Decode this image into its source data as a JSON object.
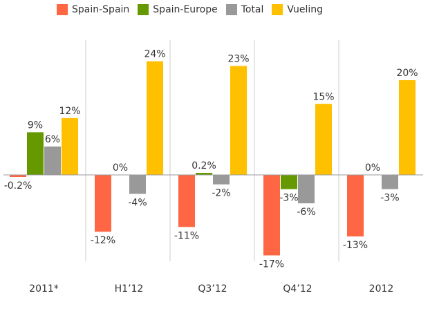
{
  "chart_data": {
    "type": "bar",
    "categories": [
      "2011*",
      "H1’12",
      "Q3’12",
      "Q4’12",
      "2012"
    ],
    "series": [
      {
        "name": "Spain-Spain",
        "color": "#ff6644",
        "values": [
          -0.2,
          -12,
          -11,
          -17,
          -13
        ],
        "labels": [
          "-0.2%",
          "-12%",
          "-11%",
          "-17%",
          "-13%"
        ]
      },
      {
        "name": "Spain-Europe",
        "color": "#669900",
        "values": [
          9,
          0,
          0.2,
          -3,
          0
        ],
        "labels": [
          "9%",
          "0%",
          "0.2%",
          "-3%",
          "0%"
        ]
      },
      {
        "name": "Total",
        "color": "#999999",
        "values": [
          6,
          -4,
          -2,
          -6,
          -3
        ],
        "labels": [
          "6%",
          "-4%",
          "-2%",
          "-6%",
          "-3%"
        ]
      },
      {
        "name": "Vueling",
        "color": "#ffc000",
        "values": [
          12,
          24,
          23,
          15,
          20
        ],
        "labels": [
          "12%",
          "24%",
          "23%",
          "15%",
          "20%"
        ]
      }
    ],
    "ylim": [
      -18,
      26
    ],
    "grid": false,
    "legend_position": "top",
    "title": "",
    "xlabel": "",
    "ylabel": ""
  }
}
